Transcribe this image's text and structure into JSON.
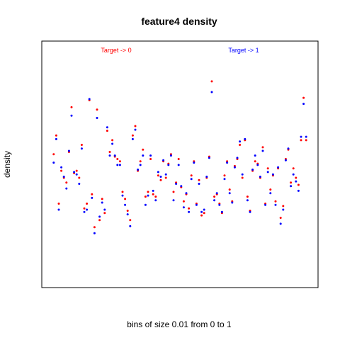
{
  "chart_data": {
    "type": "scatter",
    "title": "feature4 density",
    "xlabel": "bins of size 0.01 from 0 to 1",
    "ylabel": "density",
    "xlim": [
      0,
      1
    ],
    "ylim": [
      0,
      1
    ],
    "grid": false,
    "legend": [
      {
        "label": "Target -> 0",
        "color": "#ff0000",
        "placement": "top-left"
      },
      {
        "label": "Target -> 1",
        "color": "#0000ff",
        "placement": "top-right"
      }
    ],
    "series": [
      {
        "name": "Target -> 0",
        "color": "#ff0000",
        "x": [
          0.005,
          0.015,
          0.025,
          0.035,
          0.045,
          0.055,
          0.065,
          0.075,
          0.085,
          0.095,
          0.105,
          0.115,
          0.125,
          0.135,
          0.145,
          0.155,
          0.165,
          0.175,
          0.185,
          0.195,
          0.205,
          0.215,
          0.225,
          0.235,
          0.245,
          0.255,
          0.265,
          0.275,
          0.285,
          0.295,
          0.305,
          0.315,
          0.325,
          0.335,
          0.345,
          0.355,
          0.365,
          0.375,
          0.385,
          0.395,
          0.405,
          0.415,
          0.425,
          0.435,
          0.445,
          0.455,
          0.465,
          0.475,
          0.485,
          0.495,
          0.505,
          0.515,
          0.525,
          0.535,
          0.545,
          0.555,
          0.565,
          0.575,
          0.585,
          0.595,
          0.605,
          0.615,
          0.625,
          0.635,
          0.645,
          0.655,
          0.665,
          0.675,
          0.685,
          0.695,
          0.705,
          0.715,
          0.725,
          0.735,
          0.745,
          0.755,
          0.765,
          0.775,
          0.785,
          0.795,
          0.805,
          0.815,
          0.825,
          0.835,
          0.845,
          0.855,
          0.865,
          0.875,
          0.885,
          0.895,
          0.905,
          0.915,
          0.925,
          0.935,
          0.945,
          0.955,
          0.965,
          0.975,
          0.985,
          0.995
        ],
        "y": [
          0.54,
          0.62,
          0.33,
          0.47,
          0.44,
          0.42,
          0.55,
          0.74,
          0.46,
          0.47,
          0.44,
          0.58,
          0.31,
          0.33,
          0.77,
          0.37,
          0.23,
          0.73,
          0.26,
          0.35,
          0.29,
          0.64,
          0.55,
          0.6,
          0.53,
          0.52,
          0.51,
          0.38,
          0.35,
          0.3,
          0.26,
          0.62,
          0.66,
          0.47,
          0.51,
          0.56,
          0.36,
          0.38,
          0.52,
          0.37,
          0.36,
          0.45,
          0.43,
          0.51,
          0.44,
          0.5,
          0.54,
          0.38,
          0.42,
          0.52,
          0.4,
          0.34,
          0.37,
          0.31,
          0.45,
          0.51,
          0.33,
          0.43,
          0.28,
          0.29,
          0.44,
          0.53,
          0.85,
          0.36,
          0.37,
          0.33,
          0.29,
          0.45,
          0.51,
          0.39,
          0.34,
          0.49,
          0.52,
          0.58,
          0.44,
          0.6,
          0.36,
          0.3,
          0.47,
          0.51,
          0.5,
          0.44,
          0.57,
          0.33,
          0.48,
          0.39,
          0.45,
          0.34,
          0.48,
          0.27,
          0.32,
          0.52,
          0.56,
          0.42,
          0.48,
          0.44,
          0.41,
          0.6,
          0.78,
          0.6
        ]
      },
      {
        "name": "Target -> 1",
        "color": "#0000ff",
        "x": [
          0.005,
          0.015,
          0.025,
          0.035,
          0.045,
          0.055,
          0.065,
          0.075,
          0.085,
          0.095,
          0.105,
          0.115,
          0.125,
          0.135,
          0.145,
          0.155,
          0.165,
          0.175,
          0.185,
          0.195,
          0.205,
          0.215,
          0.225,
          0.235,
          0.245,
          0.255,
          0.265,
          0.275,
          0.285,
          0.295,
          0.305,
          0.315,
          0.325,
          0.335,
          0.345,
          0.355,
          0.365,
          0.375,
          0.385,
          0.395,
          0.405,
          0.415,
          0.425,
          0.435,
          0.445,
          0.455,
          0.465,
          0.475,
          0.485,
          0.495,
          0.505,
          0.515,
          0.525,
          0.535,
          0.545,
          0.555,
          0.565,
          0.575,
          0.585,
          0.595,
          0.605,
          0.615,
          0.625,
          0.635,
          0.645,
          0.655,
          0.665,
          0.675,
          0.685,
          0.695,
          0.705,
          0.715,
          0.725,
          0.735,
          0.745,
          0.755,
          0.765,
          0.775,
          0.785,
          0.795,
          0.805,
          0.815,
          0.825,
          0.835,
          0.845,
          0.855,
          0.865,
          0.875,
          0.885,
          0.895,
          0.905,
          0.915,
          0.925,
          0.935,
          0.945,
          0.955,
          0.965,
          0.975,
          0.985,
          0.995
        ],
        "y": [
          0.51,
          0.61,
          0.31,
          0.49,
          0.45,
          0.4,
          0.56,
          0.71,
          0.47,
          0.46,
          0.42,
          0.57,
          0.3,
          0.31,
          0.78,
          0.36,
          0.21,
          0.7,
          0.28,
          0.34,
          0.31,
          0.66,
          0.54,
          0.59,
          0.54,
          0.5,
          0.5,
          0.37,
          0.33,
          0.29,
          0.24,
          0.61,
          0.65,
          0.48,
          0.5,
          0.54,
          0.33,
          0.37,
          0.54,
          0.39,
          0.35,
          0.47,
          0.45,
          0.52,
          0.46,
          0.5,
          0.54,
          0.35,
          0.42,
          0.5,
          0.41,
          0.32,
          0.38,
          0.3,
          0.44,
          0.51,
          0.33,
          0.42,
          0.3,
          0.31,
          0.45,
          0.53,
          0.81,
          0.35,
          0.38,
          0.33,
          0.3,
          0.44,
          0.51,
          0.38,
          0.34,
          0.49,
          0.53,
          0.6,
          0.46,
          0.61,
          0.35,
          0.3,
          0.48,
          0.54,
          0.5,
          0.45,
          0.56,
          0.33,
          0.47,
          0.38,
          0.46,
          0.33,
          0.49,
          0.25,
          0.31,
          0.52,
          0.57,
          0.41,
          0.46,
          0.43,
          0.39,
          0.62,
          0.76,
          0.62
        ]
      }
    ]
  }
}
